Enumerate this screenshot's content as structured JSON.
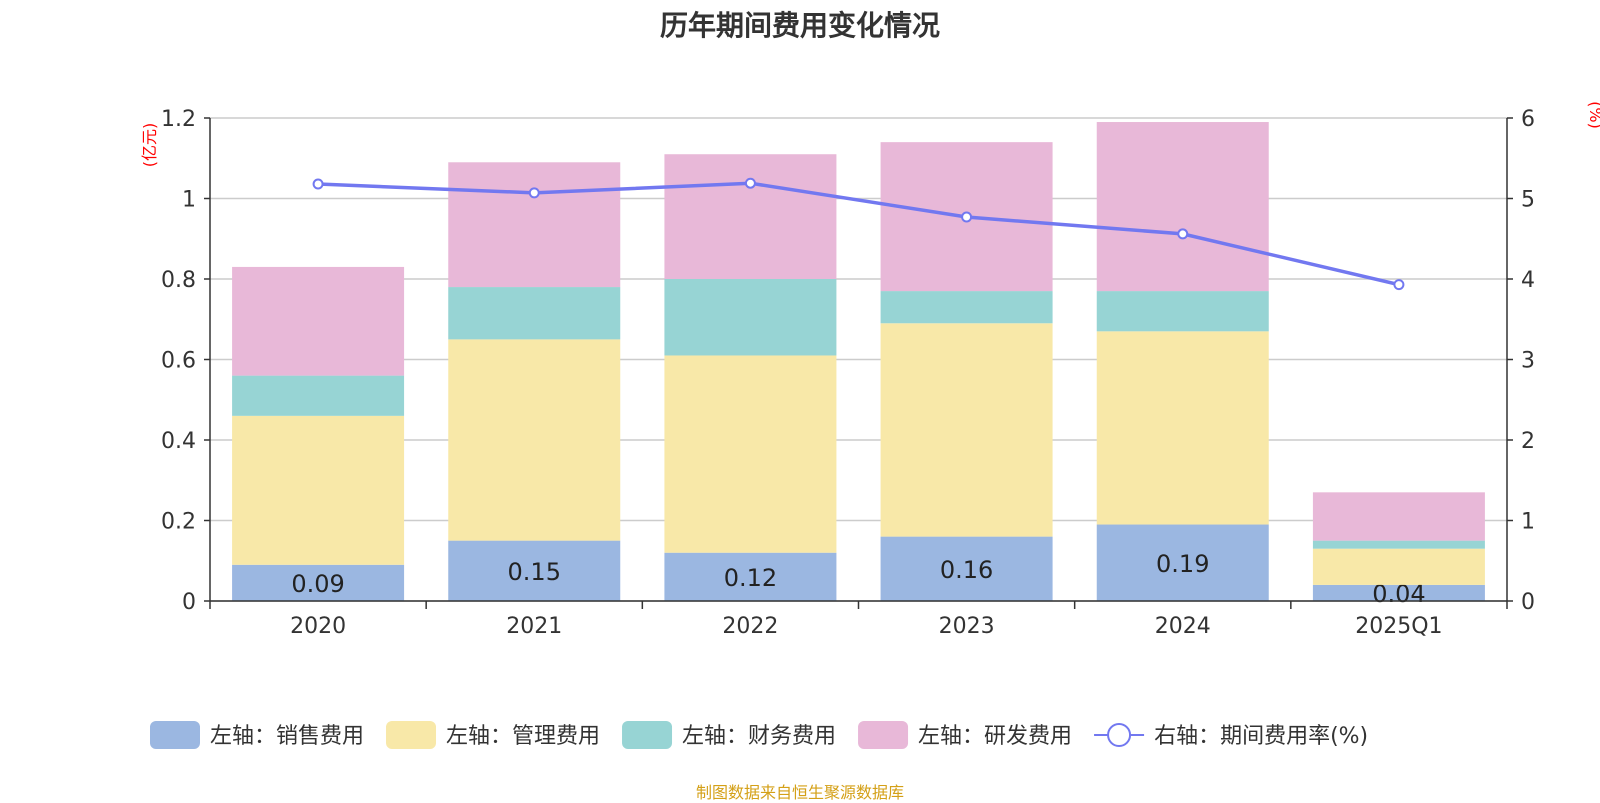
{
  "chart_data": {
    "type": "bar",
    "title": "历年期间费用变化情况",
    "categories": [
      "2020",
      "2021",
      "2022",
      "2023",
      "2024",
      "2025Q1"
    ],
    "y_left": {
      "unit_label": "(亿元)",
      "range": [
        0,
        1.2
      ],
      "ticks": [
        "0",
        "0.2",
        "0.4",
        "0.6",
        "0.8",
        "1",
        "1.2"
      ]
    },
    "y_right": {
      "unit_label": "(%)",
      "range": [
        0,
        6
      ],
      "ticks": [
        "0",
        "1",
        "2",
        "3",
        "4",
        "5",
        "6"
      ]
    },
    "stacked": true,
    "grid": true,
    "legend_position": "bottom",
    "series": [
      {
        "name": "左轴：销售费用",
        "axis": "left",
        "type": "bar",
        "color": "#9bb7e1",
        "values": [
          0.09,
          0.15,
          0.12,
          0.16,
          0.19,
          0.04
        ],
        "labels": [
          "0.09",
          "0.15",
          "0.12",
          "0.16",
          "0.19",
          "0.04"
        ]
      },
      {
        "name": "左轴：管理费用",
        "axis": "left",
        "type": "bar",
        "color": "#f8e8a8",
        "values": [
          0.37,
          0.5,
          0.49,
          0.53,
          0.48,
          0.09
        ]
      },
      {
        "name": "左轴：财务费用",
        "axis": "left",
        "type": "bar",
        "color": "#97d4d4",
        "values": [
          0.1,
          0.13,
          0.19,
          0.08,
          0.1,
          0.02
        ]
      },
      {
        "name": "左轴：研发费用",
        "axis": "left",
        "type": "bar",
        "color": "#e8b8d8",
        "values": [
          0.27,
          0.31,
          0.31,
          0.37,
          0.42,
          0.12
        ]
      },
      {
        "name": "右轴：期间费用率(%)",
        "axis": "right",
        "type": "line",
        "color": "#7278f0",
        "values": [
          5.18,
          5.07,
          5.19,
          4.77,
          4.56,
          3.93
        ]
      }
    ],
    "source": "制图数据来自恒生聚源数据库"
  }
}
